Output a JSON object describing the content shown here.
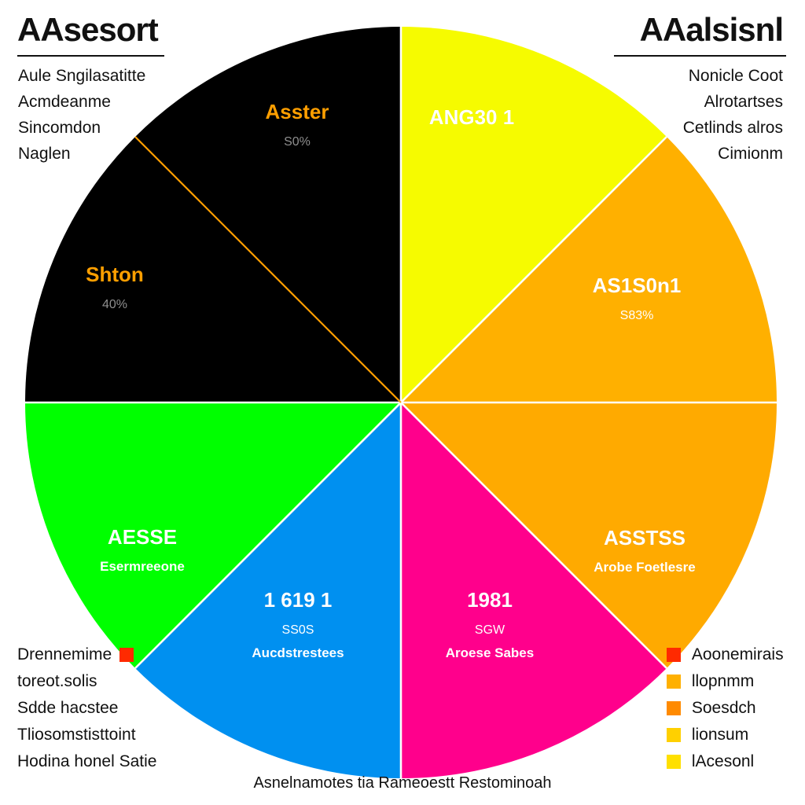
{
  "chart_data": {
    "type": "pie",
    "slices": [
      {
        "title": "ANG30 1",
        "subtitle": "",
        "value_label": "",
        "color": "#f6fb00"
      },
      {
        "title": "AS1S0n1",
        "subtitle": "",
        "value_label": "S83%",
        "color": "#ffb000"
      },
      {
        "title": "ASSTSS",
        "subtitle": "Arobe Foetlesre",
        "value_label": "",
        "color": "#ffaa00"
      },
      {
        "title": "1981",
        "subtitle": "Aroese Sabes",
        "value_label": "SGW",
        "color": "#ff008c"
      },
      {
        "title": "1 619 1",
        "subtitle": "Aucdstrestees",
        "value_label": "SS0S",
        "color": "#0090f0"
      },
      {
        "title": "AESSE",
        "subtitle": "Esermreeone",
        "value_label": "",
        "color": "#00ff00"
      },
      {
        "title": "Shton",
        "subtitle": "",
        "value_label": "40%",
        "color": "#000000"
      },
      {
        "title": "Asster",
        "subtitle": "",
        "value_label": "S0%",
        "color": "#000000"
      }
    ]
  },
  "header": {
    "left_title": "AAsesort",
    "right_title": "AAalsisnl"
  },
  "left_notes": [
    "Aule Sngilasatitte",
    "Acmdeanme",
    "Sincomdon",
    "Naglen"
  ],
  "right_notes": [
    "Nonicle Coot",
    "Alrotartses",
    "Cetlinds alros",
    "Cimionm"
  ],
  "legend_left": [
    {
      "label": "Drennemime",
      "color": "#ff2a00"
    },
    {
      "label": "toreot.solis",
      "color": ""
    },
    {
      "label": "Sdde hacstee",
      "color": ""
    },
    {
      "label": "Tliosomstisttoint",
      "color": ""
    },
    {
      "label": "Hodina honel Satie",
      "color": ""
    }
  ],
  "legend_right": [
    {
      "label": "Aoonemirais",
      "color": "#ff2a00"
    },
    {
      "label": "llopnmm",
      "color": "#ffb000"
    },
    {
      "label": "Soesdch",
      "color": "#ff8a00"
    },
    {
      "label": "lionsum",
      "color": "#ffd000"
    },
    {
      "label": "lAcesonl",
      "color": "#ffe000"
    }
  ],
  "footer": "Asnelnamotes tia Rameoestt Restominoah",
  "colors": {
    "text": "#111111",
    "slice_text_dark_bg": "#ffffff",
    "accent_orange": "#ff9f00"
  }
}
